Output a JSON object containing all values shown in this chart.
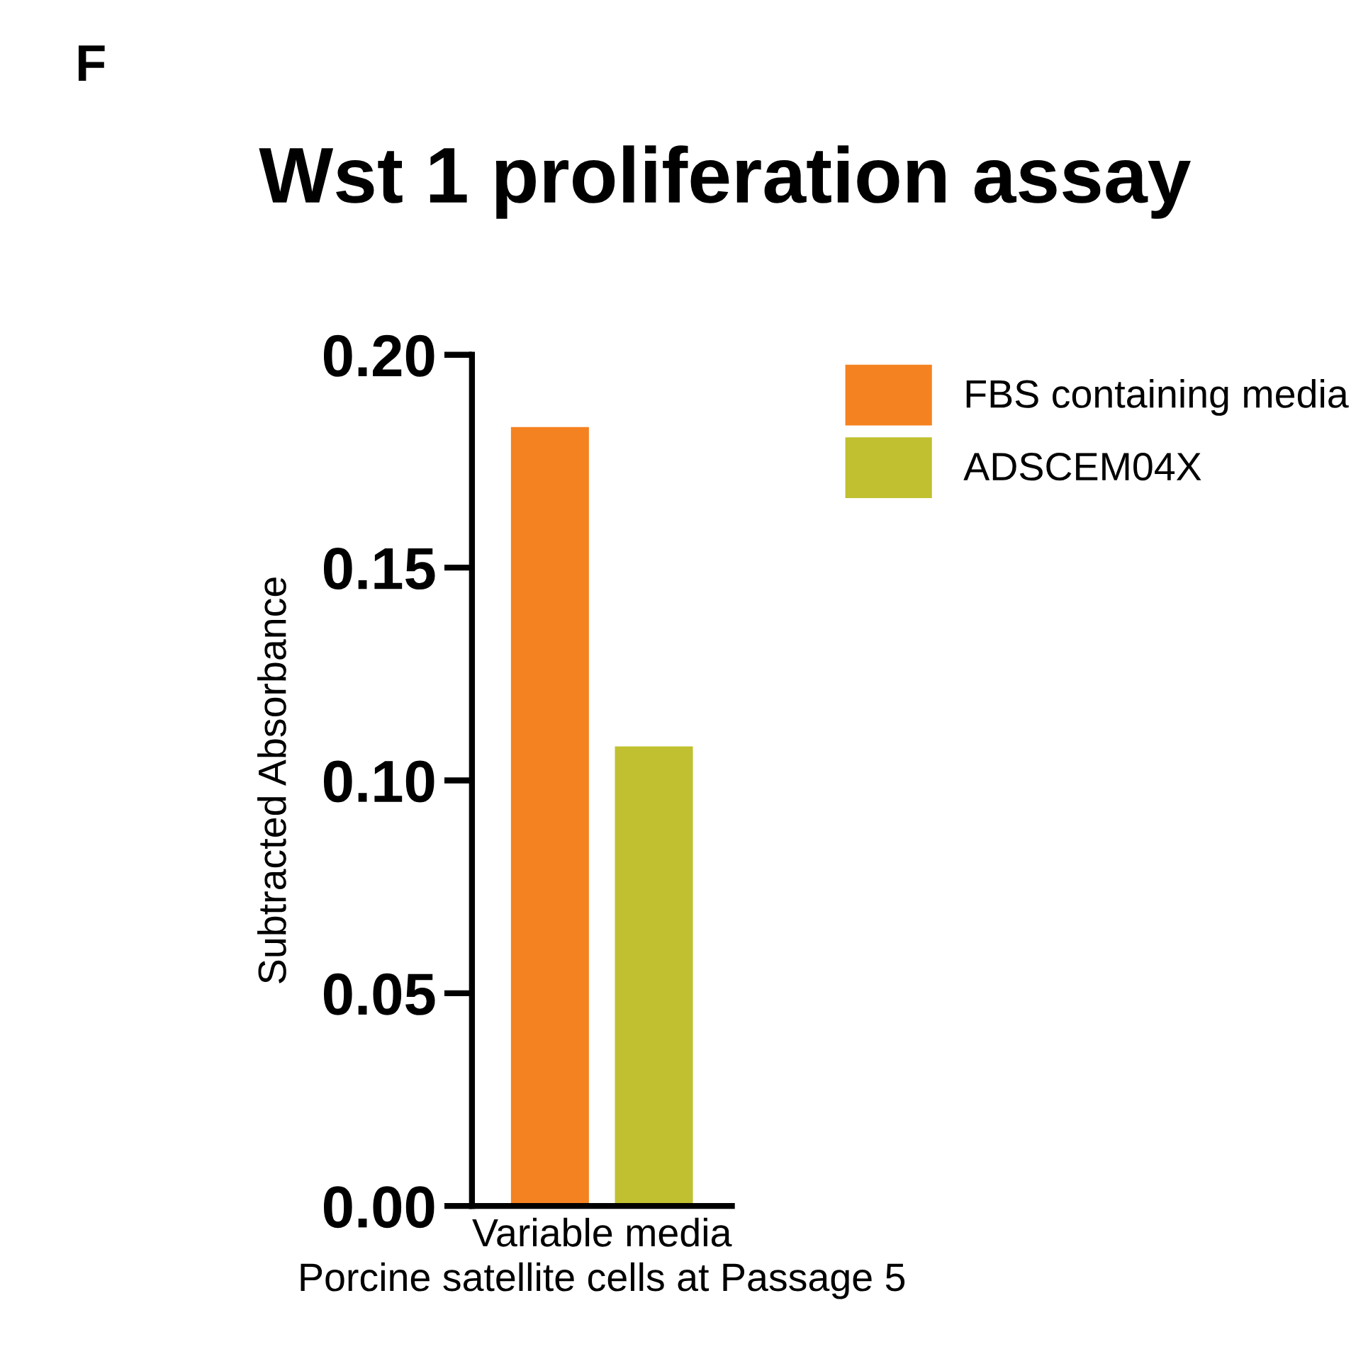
{
  "chart_data": {
    "type": "bar",
    "title": "Wst 1 proliferation assay",
    "ylabel": "Subtracted Absorbance",
    "xlabel": "Porcine satellite cells at Passage 5",
    "annotations": [
      "F"
    ],
    "categories": [
      "Variable media"
    ],
    "series": [
      {
        "name": "FBS containing media",
        "color": "#f58220",
        "values": [
          0.183
        ]
      },
      {
        "name": "ADSCEM04X",
        "color": "#c0c030",
        "values": [
          0.108
        ]
      }
    ],
    "ylim": [
      0,
      0.2
    ],
    "yticks": [
      {
        "value": 0,
        "label": "0.00"
      },
      {
        "value": 0.05,
        "label": "0.05"
      },
      {
        "value": 0.1,
        "label": "0.10"
      },
      {
        "value": 0.15,
        "label": "0.15"
      },
      {
        "value": 0.2,
        "label": "0.20"
      }
    ],
    "grid": false,
    "legend": "top right"
  }
}
